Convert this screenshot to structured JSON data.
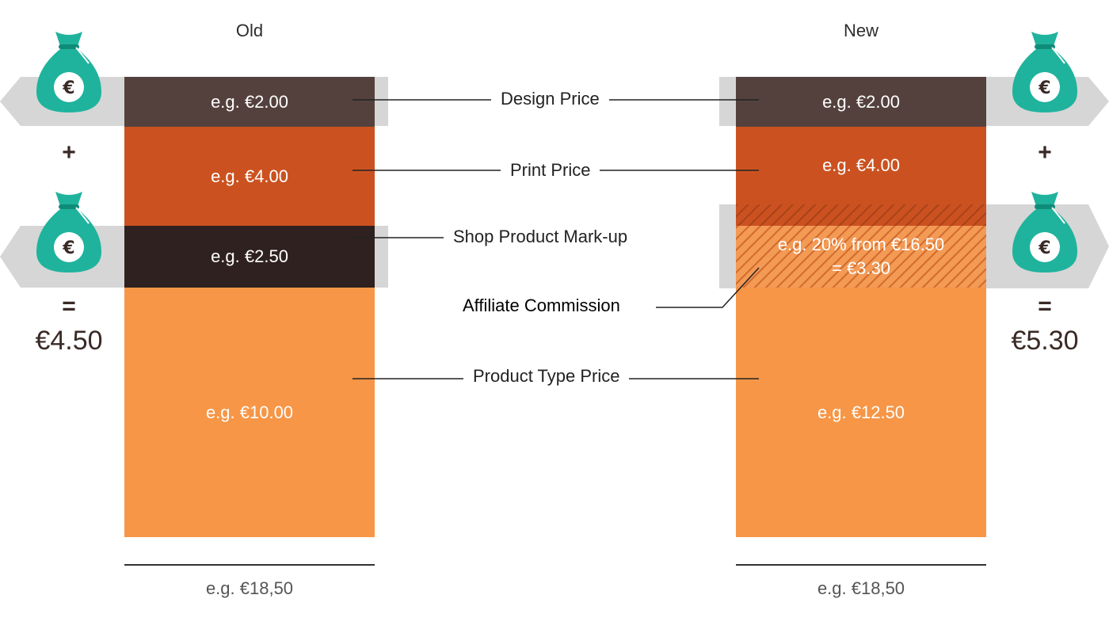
{
  "columns": {
    "old": {
      "title": "Old",
      "segments": {
        "design": "e.g. €2.00",
        "print": "e.g. €4.00",
        "markup": "e.g. €2.50",
        "product_type": "e.g. €10.00"
      },
      "total": "e.g. €18,50"
    },
    "new": {
      "title": "New",
      "segments": {
        "design": "e.g. €2.00",
        "print": "e.g. €4.00",
        "commission_line1": "e.g. 20% from €16.50",
        "commission_line2": "= €3.30",
        "product_type": "e.g. €12.50"
      },
      "total": "e.g. €18,50"
    }
  },
  "labels": {
    "design": "Design Price",
    "print": "Print Price",
    "markup": "Shop Product Mark-up",
    "commission": "Affiliate Commission",
    "product_type": "Product Type Price"
  },
  "earnings": {
    "plus": "+",
    "equals": "=",
    "old_total": "€4.50",
    "new_total": "€5.30",
    "currency_symbol": "€"
  },
  "colors": {
    "design": "#54413d",
    "print": "#cb5220",
    "markup": "#2f2120",
    "product_type": "#f69646",
    "bag": "#1fb39d",
    "bag_dark": "#0f8c79",
    "band": "#d6d6d6"
  },
  "icons": [
    "money-bag-icon"
  ]
}
